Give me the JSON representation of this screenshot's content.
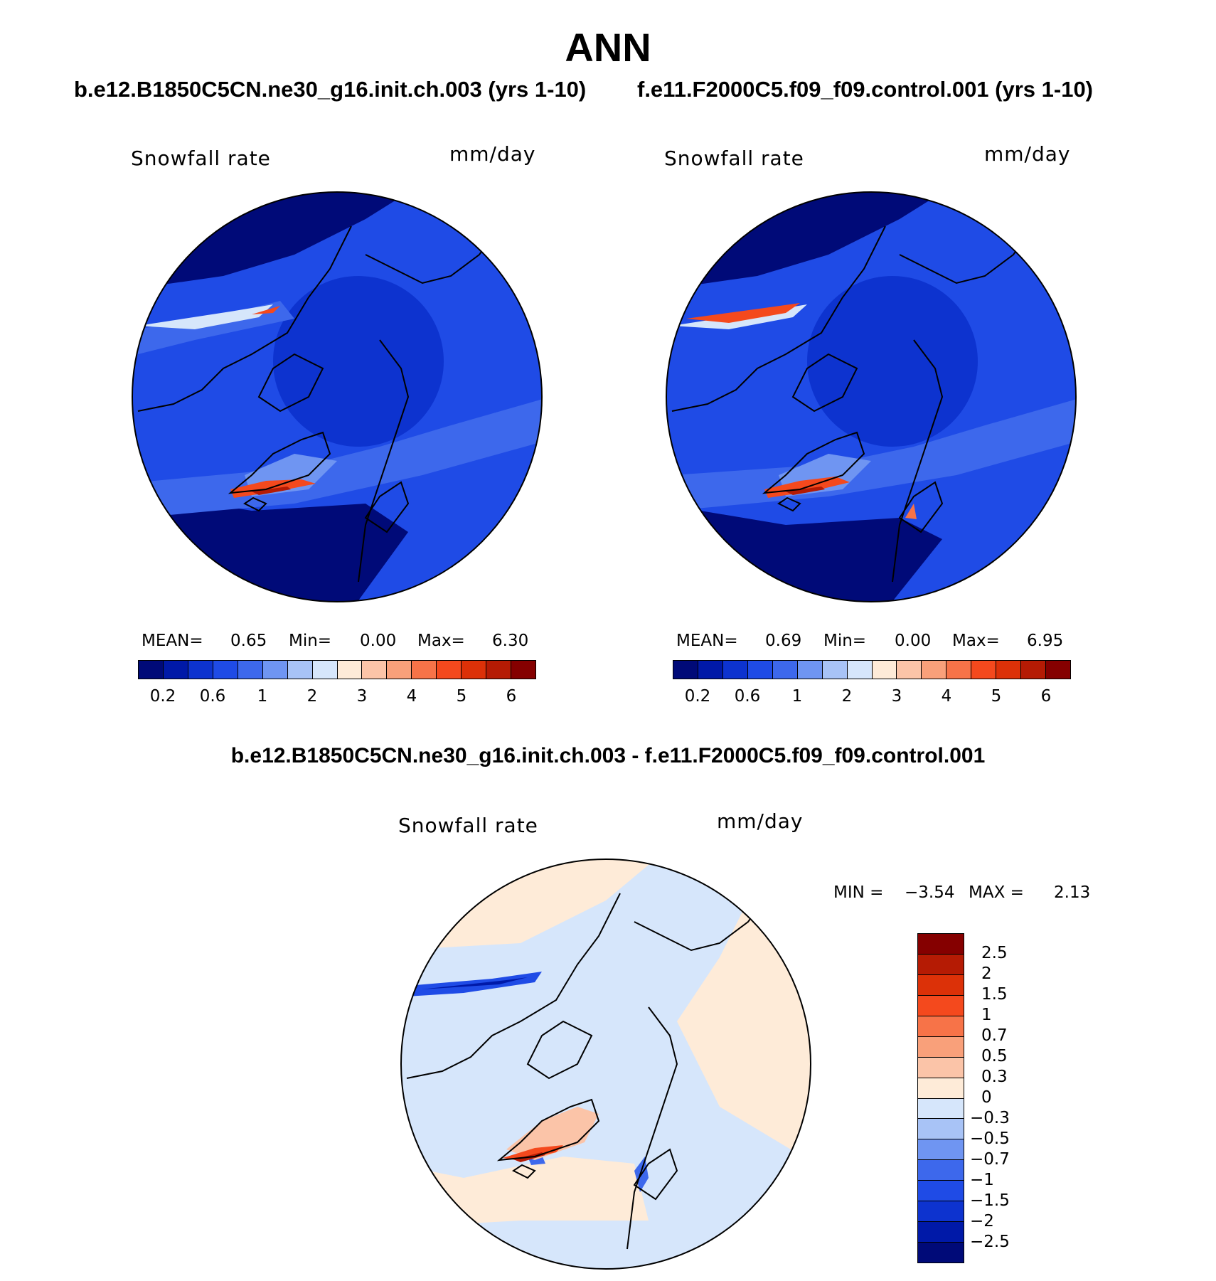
{
  "page_title": "ANN",
  "left_panel": {
    "case_title": "b.e12.B1850C5CN.ne30_g16.init.ch.003 (yrs 1-10)",
    "variable": "Snowfall rate",
    "units": "mm/day",
    "mean_label": "MEAN=",
    "mean_value": "0.65",
    "min_label": "Min=",
    "min_value": "0.00",
    "max_label": "Max=",
    "max_value": "6.30"
  },
  "right_panel": {
    "case_title": "f.e11.F2000C5.f09_f09.control.001 (yrs 1-10)",
    "variable": "Snowfall rate",
    "units": "mm/day",
    "mean_label": "MEAN=",
    "mean_value": "0.69",
    "min_label": "Min=",
    "min_value": "0.00",
    "max_label": "Max=",
    "max_value": "6.95"
  },
  "diff_panel": {
    "title": "b.e12.B1850C5CN.ne30_g16.init.ch.003 - f.e11.F2000C5.f09_f09.control.001",
    "variable": "Snowfall rate",
    "units": "mm/day",
    "min_label": "MIN =",
    "min_value": "−3.54",
    "max_label": "MAX =",
    "max_value": "2.13"
  },
  "abs_colorbar": {
    "colors": [
      "#000a78",
      "#0019a8",
      "#0d33cf",
      "#1f4be6",
      "#3d68ec",
      "#6f95f2",
      "#a8c3f6",
      "#d6e6fb",
      "#feebd8",
      "#fbc4a8",
      "#f9a07a",
      "#f77348",
      "#f4491d",
      "#dc3108",
      "#b51b04",
      "#850000"
    ],
    "tick_labels": [
      "0.2",
      "0.6",
      "1",
      "2",
      "3",
      "4",
      "5",
      "6"
    ]
  },
  "diff_colorbar": {
    "colors_top_to_bottom": [
      "#850000",
      "#b51b04",
      "#dc3108",
      "#f4491d",
      "#f77348",
      "#f9a07a",
      "#fbc4a8",
      "#feebd8",
      "#d6e6fb",
      "#a8c3f6",
      "#6f95f2",
      "#3d68ec",
      "#1f4be6",
      "#0d33cf",
      "#0019a8",
      "#000a78"
    ],
    "tick_labels_top_to_bottom": [
      "2.5",
      "2",
      "1.5",
      "1",
      "0.7",
      "0.5",
      "0.3",
      "0",
      "−0.3",
      "−0.5",
      "−0.7",
      "−1",
      "−1.5",
      "−2",
      "−2.5"
    ]
  },
  "map_colors": {
    "deep_blue": "#000a78",
    "mid_blue": "#0d33cf",
    "blue": "#1f4be6",
    "light_blue": "#3d68ec",
    "pale_blue": "#d6e6fb",
    "peach": "#feebd8",
    "red": "#f4491d",
    "dark_red": "#b51b04"
  }
}
